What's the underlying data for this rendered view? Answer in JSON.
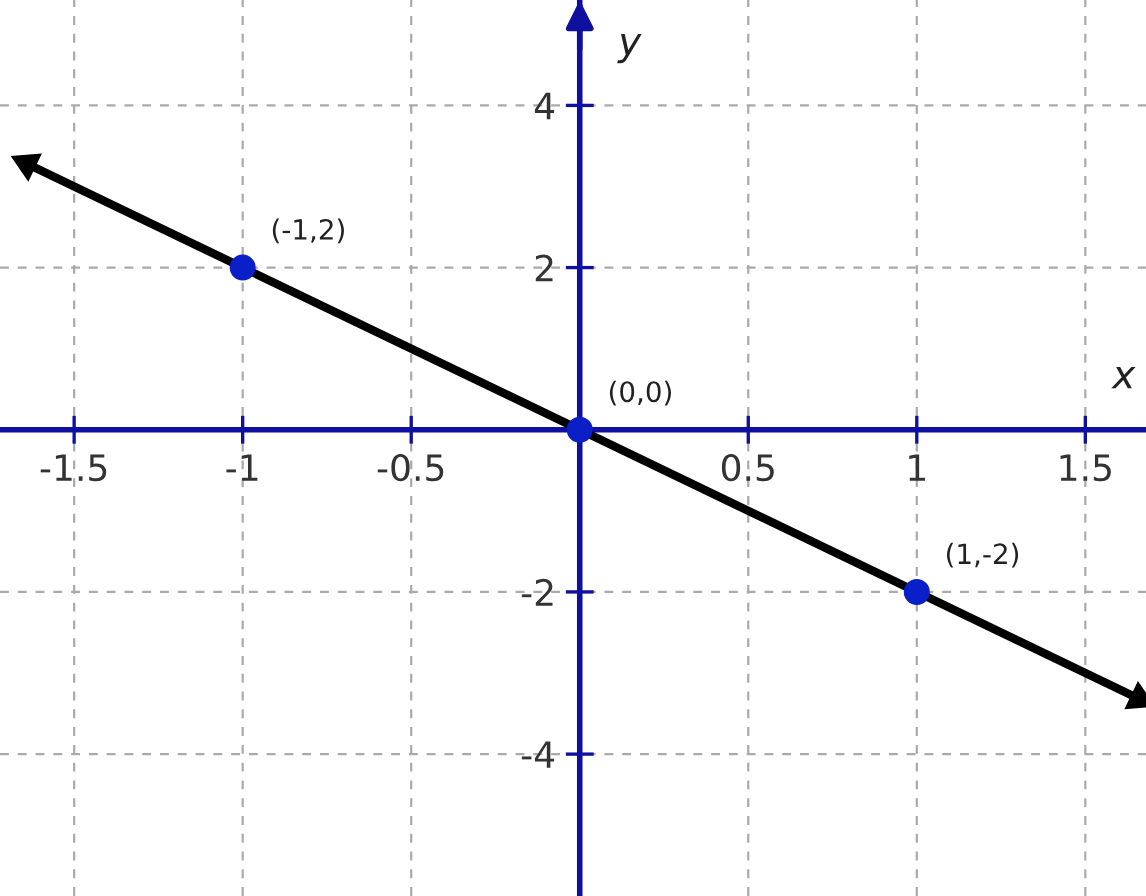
{
  "chart_data": {
    "type": "line",
    "xlabel": "x",
    "ylabel": "y",
    "xlim": [
      -1.72,
      1.68
    ],
    "ylim": [
      -5.75,
      5.3
    ],
    "xticks": [
      -1.5,
      -1,
      -0.5,
      0.5,
      1,
      1.5
    ],
    "yticks": [
      -4,
      -2,
      2,
      4
    ],
    "grid": true,
    "line_style": "solid",
    "series": [
      {
        "color": "#000000",
        "x": [
          -1.64,
          1.66
        ],
        "values": [
          3.28,
          -3.32
        ],
        "marker": "triangle"
      },
      {
        "type": "scatter",
        "color": "#0a1fc8",
        "x": [
          -1,
          0,
          1
        ],
        "values": [
          2,
          0,
          -2
        ],
        "marker": "circle"
      }
    ],
    "annotations": [
      {
        "text": "(-1,2)",
        "x": -1,
        "y": 2
      },
      {
        "text": "(0,0)",
        "x": 0,
        "y": 0
      },
      {
        "text": "(1,-2)",
        "x": 1,
        "y": -2
      }
    ]
  }
}
